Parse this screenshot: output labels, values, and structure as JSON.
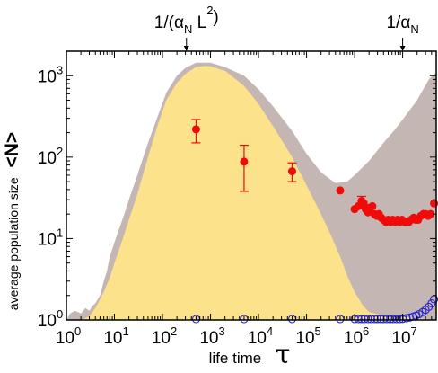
{
  "chart_data": {
    "type": "scatter",
    "xscale": "log",
    "yscale": "log",
    "xlim": [
      1,
      50000000
    ],
    "ylim": [
      1,
      2000
    ],
    "xlabel_text": "life time",
    "xlabel_symbol": "τ",
    "ylabel_text": "average population size",
    "ylabel_symbol": "<N>",
    "x_ticks": [
      {
        "value": 1,
        "base": "10",
        "exp": "0"
      },
      {
        "value": 10,
        "base": "10",
        "exp": "1"
      },
      {
        "value": 100,
        "base": "10",
        "exp": "2"
      },
      {
        "value": 1000,
        "base": "10",
        "exp": "3"
      },
      {
        "value": 10000,
        "base": "10",
        "exp": "4"
      },
      {
        "value": 100000,
        "base": "10",
        "exp": "5"
      },
      {
        "value": 1000000,
        "base": "10",
        "exp": "6"
      },
      {
        "value": 10000000,
        "base": "10",
        "exp": "7"
      }
    ],
    "y_ticks": [
      {
        "value": 1,
        "base": "10",
        "exp": "0"
      },
      {
        "value": 10,
        "base": "10",
        "exp": "1"
      },
      {
        "value": 100,
        "base": "10",
        "exp": "2"
      },
      {
        "value": 1000,
        "base": "10",
        "exp": "3"
      }
    ],
    "top_annotations": [
      {
        "x": 316,
        "parts": [
          "1/(α",
          "N",
          " L",
          "2",
          ")"
        ]
      },
      {
        "x": 10000000,
        "parts": [
          "1/α",
          "N"
        ]
      }
    ],
    "colors": {
      "gray_band": "#c4b7b3",
      "yellow_band": "#fce28a",
      "red_points": "#f00a0a",
      "blue_points": "#2222cc"
    },
    "gray_band": [
      [
        1,
        1.0
      ],
      [
        1.2,
        1.2
      ],
      [
        1.5,
        1.3
      ],
      [
        2,
        1.2
      ],
      [
        2.5,
        1.4
      ],
      [
        3,
        1.3
      ],
      [
        3.5,
        1.5
      ],
      [
        4,
        1.6
      ],
      [
        5,
        2.0
      ],
      [
        6,
        3.0
      ],
      [
        7,
        4.0
      ],
      [
        8,
        6.0
      ],
      [
        10,
        9.0
      ],
      [
        13,
        14
      ],
      [
        17,
        22
      ],
      [
        20,
        30
      ],
      [
        30,
        60
      ],
      [
        50,
        150
      ],
      [
        80,
        320
      ],
      [
        120,
        620
      ],
      [
        200,
        1000
      ],
      [
        300,
        1250
      ],
      [
        500,
        1450
      ],
      [
        1000,
        1450
      ],
      [
        2000,
        1280
      ],
      [
        5000,
        1000
      ],
      [
        10000,
        680
      ],
      [
        20000,
        420
      ],
      [
        50000,
        210
      ],
      [
        100000,
        110
      ],
      [
        200000,
        65
      ],
      [
        400000,
        48
      ],
      [
        700000,
        50
      ],
      [
        1000000,
        60
      ],
      [
        2000000,
        90
      ],
      [
        4000000,
        150
      ],
      [
        7000000,
        220
      ],
      [
        10000000,
        290
      ],
      [
        20000000,
        500
      ],
      [
        35000000,
        900
      ],
      [
        50000000,
        1100
      ],
      [
        50000000,
        1.0
      ],
      [
        10000000,
        1.0
      ],
      [
        3000000,
        1.0
      ],
      [
        1000000,
        1.0
      ],
      [
        300000,
        1.0
      ],
      [
        100000,
        1.0
      ],
      [
        10000,
        1.0
      ],
      [
        1000,
        1.0
      ],
      [
        100,
        1.0
      ],
      [
        10,
        1.0
      ],
      [
        1,
        1.0
      ]
    ],
    "yellow_band": [
      [
        1,
        1.0
      ],
      [
        2,
        1.0
      ],
      [
        3,
        1.1
      ],
      [
        4,
        1.4
      ],
      [
        5,
        1.8
      ],
      [
        6,
        2.2
      ],
      [
        8,
        3.3
      ],
      [
        10,
        5.0
      ],
      [
        15,
        10
      ],
      [
        20,
        17
      ],
      [
        30,
        35
      ],
      [
        50,
        100
      ],
      [
        80,
        250
      ],
      [
        120,
        500
      ],
      [
        200,
        820
      ],
      [
        300,
        1050
      ],
      [
        500,
        1280
      ],
      [
        800,
        1320
      ],
      [
        1000,
        1300
      ],
      [
        2000,
        1150
      ],
      [
        5000,
        750
      ],
      [
        10000,
        450
      ],
      [
        20000,
        240
      ],
      [
        50000,
        100
      ],
      [
        100000,
        45
      ],
      [
        200000,
        20
      ],
      [
        300000,
        12
      ],
      [
        500000,
        6
      ],
      [
        700000,
        3.5
      ],
      [
        1000000,
        2.2
      ],
      [
        1500000,
        1.5
      ],
      [
        2000000,
        1.25
      ],
      [
        5000000,
        1.1
      ],
      [
        20000000,
        1.05
      ],
      [
        50000000,
        1.0
      ],
      [
        50000000,
        1.0
      ],
      [
        1,
        1.0
      ]
    ],
    "series": [
      {
        "marker": "filled-circle",
        "color": "#f00a0a",
        "points": [
          {
            "x": 500,
            "y": 220,
            "err_low": 150,
            "err_high": 290
          },
          {
            "x": 5000,
            "y": 88,
            "err_low": 38,
            "err_high": 140
          },
          {
            "x": 50000,
            "y": 67,
            "err_low": 50,
            "err_high": 85
          },
          {
            "x": 500000,
            "y": 39
          },
          {
            "x": 1000000,
            "y": 23
          },
          {
            "x": 1200000,
            "y": 25
          },
          {
            "x": 1400000,
            "y": 29,
            "err_low": 25,
            "err_high": 33
          },
          {
            "x": 1550000,
            "y": 27
          },
          {
            "x": 1700000,
            "y": 23
          },
          {
            "x": 1900000,
            "y": 21
          },
          {
            "x": 2100000,
            "y": 24
          },
          {
            "x": 2350000,
            "y": 25
          },
          {
            "x": 2600000,
            "y": 20
          },
          {
            "x": 2900000,
            "y": 19
          },
          {
            "x": 3200000,
            "y": 20
          },
          {
            "x": 3600000,
            "y": 18
          },
          {
            "x": 4000000,
            "y": 17
          },
          {
            "x": 4500000,
            "y": 16
          },
          {
            "x": 5000000,
            "y": 17
          },
          {
            "x": 5600000,
            "y": 16
          },
          {
            "x": 6200000,
            "y": 17
          },
          {
            "x": 7000000,
            "y": 16
          },
          {
            "x": 7800000,
            "y": 17
          },
          {
            "x": 8700000,
            "y": 16
          },
          {
            "x": 9700000,
            "y": 17
          },
          {
            "x": 11000000,
            "y": 16
          },
          {
            "x": 12000000,
            "y": 16
          },
          {
            "x": 13500000,
            "y": 16
          },
          {
            "x": 15000000,
            "y": 17
          },
          {
            "x": 17000000,
            "y": 18
          },
          {
            "x": 19000000,
            "y": 17
          },
          {
            "x": 21000000,
            "y": 17
          },
          {
            "x": 24000000,
            "y": 19
          },
          {
            "x": 27000000,
            "y": 20
          },
          {
            "x": 30000000,
            "y": 20
          },
          {
            "x": 34000000,
            "y": 19
          },
          {
            "x": 38000000,
            "y": 20
          },
          {
            "x": 45000000,
            "y": 27
          }
        ]
      },
      {
        "marker": "open-circle",
        "color": "#2222cc",
        "points": [
          {
            "x": 500,
            "y": 1.0
          },
          {
            "x": 5000,
            "y": 1.0
          },
          {
            "x": 50000,
            "y": 1.0
          },
          {
            "x": 500000,
            "y": 1.0
          },
          {
            "x": 1000000,
            "y": 1.0
          },
          {
            "x": 1200000,
            "y": 1.0
          },
          {
            "x": 1400000,
            "y": 1.0
          },
          {
            "x": 1600000,
            "y": 1.0
          },
          {
            "x": 1900000,
            "y": 1.0
          },
          {
            "x": 2200000,
            "y": 1.0
          },
          {
            "x": 2600000,
            "y": 1.0
          },
          {
            "x": 3000000,
            "y": 1.0
          },
          {
            "x": 3500000,
            "y": 1.0
          },
          {
            "x": 4000000,
            "y": 1.0
          },
          {
            "x": 4700000,
            "y": 1.0
          },
          {
            "x": 5500000,
            "y": 1.0
          },
          {
            "x": 6400000,
            "y": 1.0
          },
          {
            "x": 7500000,
            "y": 1.01
          },
          {
            "x": 8700000,
            "y": 1.02
          },
          {
            "x": 10000000,
            "y": 1.03
          },
          {
            "x": 12000000,
            "y": 1.05
          },
          {
            "x": 14000000,
            "y": 1.07
          },
          {
            "x": 16500000,
            "y": 1.1
          },
          {
            "x": 19000000,
            "y": 1.13
          },
          {
            "x": 22000000,
            "y": 1.18
          },
          {
            "x": 26000000,
            "y": 1.25
          },
          {
            "x": 30000000,
            "y": 1.33
          },
          {
            "x": 35000000,
            "y": 1.45
          },
          {
            "x": 40000000,
            "y": 1.6
          },
          {
            "x": 45000000,
            "y": 1.8
          }
        ]
      }
    ]
  }
}
